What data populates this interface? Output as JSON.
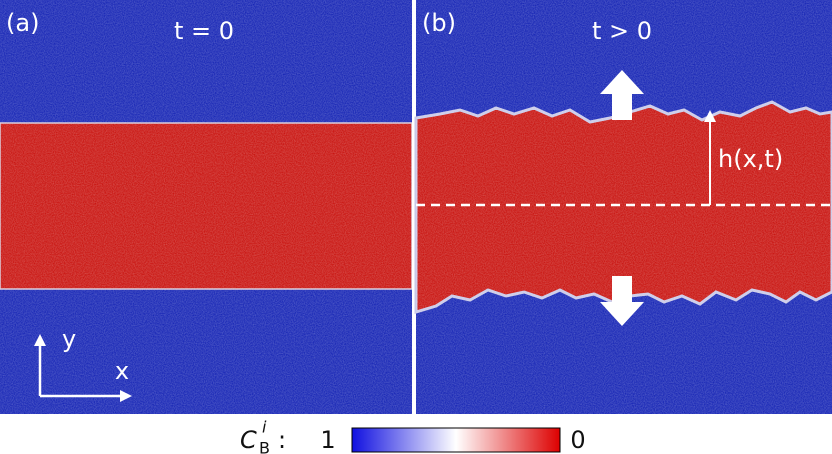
{
  "panels": [
    {
      "label": "(a)",
      "time": "t = 0"
    },
    {
      "label": "(b)",
      "time": "t > 0",
      "height_label": "h(x,t)"
    }
  ],
  "axes": {
    "y": "y",
    "x": "x"
  },
  "colorbar": {
    "symbol": "C",
    "subscript": "B",
    "superscript": "i",
    "suffix": ":",
    "left_label": "1",
    "right_label": "0"
  }
}
